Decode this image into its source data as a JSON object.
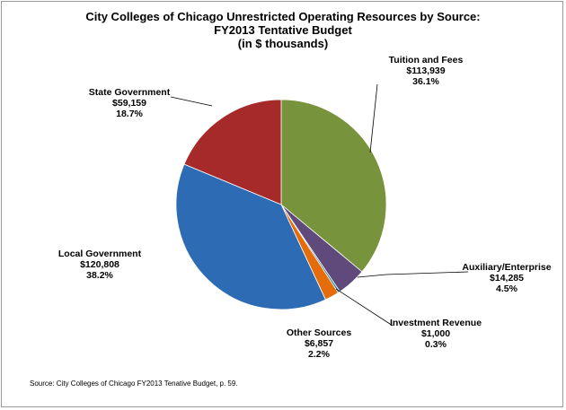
{
  "chart_data": {
    "type": "pie",
    "title_lines": [
      "City Colleges of Chicago Unrestricted Operating Resources by Source:",
      "FY2013 Tentative Budget",
      "(in $ thousands)"
    ],
    "slices": [
      {
        "name": "Tuition and Fees",
        "value_label": "$113,939",
        "percent_label": "36.1%",
        "value": 113939,
        "color": "#77933c"
      },
      {
        "name": "Auxiliary/Enterprise",
        "value_label": "$14,285",
        "percent_label": "4.5%",
        "value": 14285,
        "color": "#604a7b"
      },
      {
        "name": "Investment Revenue",
        "value_label": "$1,000",
        "percent_label": "0.3%",
        "value": 1000,
        "color": "#31859c"
      },
      {
        "name": "Other Sources",
        "value_label": "$6,857",
        "percent_label": "2.2%",
        "value": 6857,
        "color": "#e46c0a"
      },
      {
        "name": "Local Government",
        "value_label": "$120,808",
        "percent_label": "38.2%",
        "value": 120808,
        "color": "#2e6bb5"
      },
      {
        "name": "State Government",
        "value_label": "$59,159",
        "percent_label": "18.7%",
        "value": 59159,
        "color": "#a72a2a"
      }
    ]
  },
  "source_note": "Source: City Colleges of Chicago FY2013 Tenative Budget, p. 59."
}
